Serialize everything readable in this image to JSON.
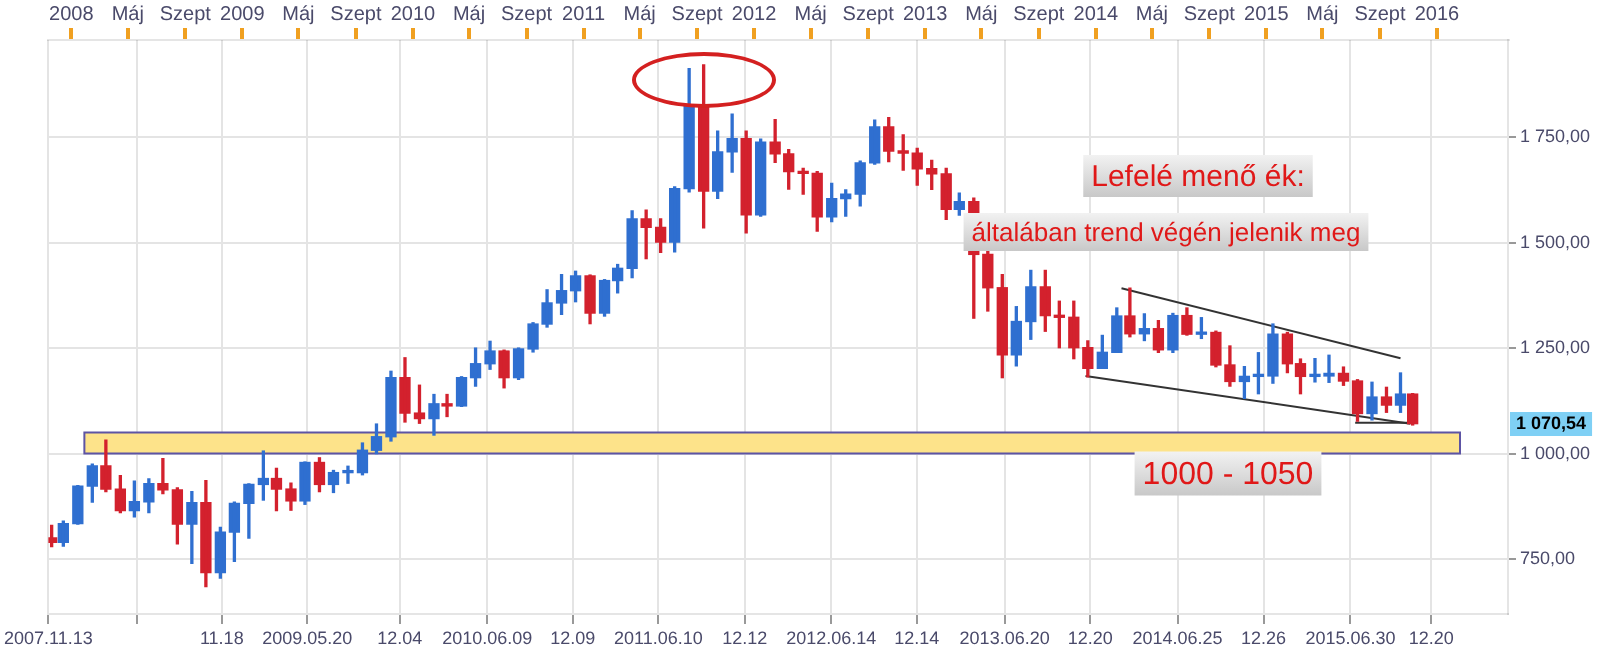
{
  "chart_data": {
    "type": "candlestick",
    "x": [
      "2007-11-20",
      "2007-12-15",
      "2008-01-15",
      "2008-02-15",
      "2008-03-15",
      "2008-04-15",
      "2008-05-15",
      "2008-06-15",
      "2008-07-15",
      "2008-08-15",
      "2008-09-15",
      "2008-10-15",
      "2008-11-15",
      "2008-12-15",
      "2009-01-15",
      "2009-02-15",
      "2009-03-15",
      "2009-04-15",
      "2009-05-15",
      "2009-06-15",
      "2009-07-15",
      "2009-08-15",
      "2009-09-15",
      "2009-10-15",
      "2009-11-15",
      "2009-12-15",
      "2010-01-15",
      "2010-02-15",
      "2010-03-15",
      "2010-04-15",
      "2010-05-15",
      "2010-06-15",
      "2010-07-15",
      "2010-08-15",
      "2010-09-15",
      "2010-10-15",
      "2010-11-15",
      "2010-12-15",
      "2011-01-15",
      "2011-02-15",
      "2011-03-15",
      "2011-04-15",
      "2011-05-15",
      "2011-06-15",
      "2011-07-15",
      "2011-08-15",
      "2011-09-15",
      "2011-10-15",
      "2011-11-15",
      "2011-12-15",
      "2012-01-15",
      "2012-02-15",
      "2012-03-15",
      "2012-04-15",
      "2012-05-15",
      "2012-06-15",
      "2012-07-15",
      "2012-08-15",
      "2012-09-15",
      "2012-10-15",
      "2012-11-15",
      "2012-12-15",
      "2013-01-15",
      "2013-02-15",
      "2013-03-15",
      "2013-04-15",
      "2013-05-15",
      "2013-06-15",
      "2013-07-15",
      "2013-08-15",
      "2013-09-15",
      "2013-10-15",
      "2013-11-15",
      "2013-12-15",
      "2014-01-15",
      "2014-02-15",
      "2014-03-15",
      "2014-04-15",
      "2014-05-15",
      "2014-06-15",
      "2014-07-15",
      "2014-08-15",
      "2014-09-15",
      "2014-10-15",
      "2014-11-15",
      "2014-12-15",
      "2015-01-15",
      "2015-02-15",
      "2015-03-15",
      "2015-04-15",
      "2015-05-15",
      "2015-06-15",
      "2015-07-15",
      "2015-08-15",
      "2015-09-15",
      "2015-10-15",
      "2015-11-10"
    ],
    "ohlc": [
      [
        800,
        830,
        780,
        790
      ],
      [
        790,
        840,
        781,
        834
      ],
      [
        834,
        924,
        833,
        923
      ],
      [
        923,
        975,
        885,
        971
      ],
      [
        971,
        1032,
        910,
        916
      ],
      [
        916,
        948,
        860,
        865
      ],
      [
        865,
        935,
        850,
        886
      ],
      [
        886,
        940,
        860,
        929
      ],
      [
        929,
        988,
        905,
        914
      ],
      [
        914,
        919,
        786,
        833
      ],
      [
        833,
        910,
        740,
        884
      ],
      [
        884,
        936,
        685,
        718
      ],
      [
        718,
        825,
        705,
        814
      ],
      [
        814,
        885,
        745,
        882
      ],
      [
        882,
        928,
        800,
        927
      ],
      [
        927,
        1006,
        890,
        941
      ],
      [
        941,
        965,
        865,
        916
      ],
      [
        916,
        930,
        866,
        888
      ],
      [
        888,
        980,
        880,
        979
      ],
      [
        979,
        990,
        910,
        927
      ],
      [
        927,
        960,
        908,
        955
      ],
      [
        955,
        970,
        930,
        955
      ],
      [
        955,
        1025,
        950,
        1008
      ],
      [
        1008,
        1070,
        1000,
        1040
      ],
      [
        1040,
        1195,
        1030,
        1180
      ],
      [
        1180,
        1227,
        1075,
        1096
      ],
      [
        1096,
        1162,
        1072,
        1083
      ],
      [
        1083,
        1140,
        1044,
        1118
      ],
      [
        1118,
        1140,
        1088,
        1113
      ],
      [
        1113,
        1182,
        1112,
        1180
      ],
      [
        1180,
        1250,
        1160,
        1213
      ],
      [
        1213,
        1266,
        1200,
        1243
      ],
      [
        1243,
        1245,
        1156,
        1180
      ],
      [
        1180,
        1250,
        1176,
        1248
      ],
      [
        1248,
        1310,
        1241,
        1307
      ],
      [
        1307,
        1388,
        1300,
        1357
      ],
      [
        1357,
        1424,
        1330,
        1386
      ],
      [
        1386,
        1432,
        1360,
        1421
      ],
      [
        1421,
        1423,
        1308,
        1333
      ],
      [
        1333,
        1412,
        1326,
        1410
      ],
      [
        1410,
        1448,
        1381,
        1439
      ],
      [
        1439,
        1575,
        1417,
        1556
      ],
      [
        1556,
        1577,
        1462,
        1536
      ],
      [
        1536,
        1556,
        1477,
        1501
      ],
      [
        1501,
        1632,
        1478,
        1628
      ],
      [
        1628,
        1912,
        1620,
        1826
      ],
      [
        1826,
        1921,
        1535,
        1622
      ],
      [
        1622,
        1764,
        1605,
        1715
      ],
      [
        1715,
        1804,
        1667,
        1746
      ],
      [
        1746,
        1764,
        1523,
        1566
      ],
      [
        1566,
        1745,
        1563,
        1738
      ],
      [
        1738,
        1791,
        1690,
        1710
      ],
      [
        1710,
        1720,
        1627,
        1668
      ],
      [
        1668,
        1676,
        1615,
        1664
      ],
      [
        1664,
        1668,
        1527,
        1561
      ],
      [
        1561,
        1640,
        1550,
        1604
      ],
      [
        1604,
        1625,
        1563,
        1615
      ],
      [
        1615,
        1693,
        1587,
        1689
      ],
      [
        1689,
        1790,
        1686,
        1774
      ],
      [
        1774,
        1796,
        1692,
        1717
      ],
      [
        1717,
        1755,
        1672,
        1712
      ],
      [
        1712,
        1723,
        1636,
        1675
      ],
      [
        1675,
        1695,
        1626,
        1663
      ],
      [
        1663,
        1676,
        1555,
        1579
      ],
      [
        1579,
        1617,
        1565,
        1597
      ],
      [
        1597,
        1605,
        1321,
        1472
      ],
      [
        1472,
        1487,
        1338,
        1393
      ],
      [
        1393,
        1424,
        1180,
        1234
      ],
      [
        1234,
        1348,
        1208,
        1313
      ],
      [
        1313,
        1434,
        1271,
        1395
      ],
      [
        1395,
        1434,
        1290,
        1327
      ],
      [
        1327,
        1361,
        1251,
        1323
      ],
      [
        1323,
        1361,
        1225,
        1251
      ],
      [
        1251,
        1267,
        1182,
        1202
      ],
      [
        1202,
        1280,
        1202,
        1240
      ],
      [
        1240,
        1345,
        1240,
        1326
      ],
      [
        1326,
        1392,
        1277,
        1284
      ],
      [
        1284,
        1331,
        1268,
        1296
      ],
      [
        1296,
        1315,
        1240,
        1246
      ],
      [
        1246,
        1332,
        1240,
        1327
      ],
      [
        1327,
        1345,
        1281,
        1283
      ],
      [
        1283,
        1322,
        1273,
        1287
      ],
      [
        1287,
        1290,
        1206,
        1210
      ],
      [
        1210,
        1255,
        1160,
        1171
      ],
      [
        1171,
        1206,
        1131,
        1183
      ],
      [
        1183,
        1239,
        1142,
        1184
      ],
      [
        1184,
        1307,
        1167,
        1283
      ],
      [
        1283,
        1287,
        1192,
        1213
      ],
      [
        1213,
        1224,
        1142,
        1183
      ],
      [
        1183,
        1225,
        1170,
        1184
      ],
      [
        1184,
        1233,
        1169,
        1190
      ],
      [
        1190,
        1205,
        1162,
        1172
      ],
      [
        1172,
        1175,
        1077,
        1095
      ],
      [
        1095,
        1169,
        1080,
        1134
      ],
      [
        1134,
        1157,
        1098,
        1115
      ],
      [
        1115,
        1191,
        1098,
        1141
      ],
      [
        1141,
        1142,
        1068,
        1071
      ]
    ],
    "series": [
      {
        "type": "line",
        "color": "#333333",
        "x": [
          "2014-02-25",
          "2015-10-15"
        ],
        "values": [
          1392,
          1226
        ]
      },
      {
        "type": "line",
        "color": "#333333",
        "x": [
          "2013-12-10",
          "2015-11-05"
        ],
        "values": [
          1184,
          1071
        ]
      },
      {
        "type": "line",
        "color": "#333333",
        "x": [
          "2015-07-10",
          "2015-11-10"
        ],
        "values": [
          1073,
          1073
        ]
      }
    ],
    "xlim": [
      "2007-11-13",
      "2016-06-01"
    ],
    "xticks": [
      {
        "value": "2007-11-13",
        "label": "2007.11.13"
      },
      {
        "value": "2008-05-20",
        "label": null
      },
      {
        "value": "2008-11-18",
        "label": "11.18"
      },
      {
        "value": "2009-05-20",
        "label": "2009.05.20"
      },
      {
        "value": "2009-12-04",
        "label": "12.04"
      },
      {
        "value": "2010-06-09",
        "label": "2010.06.09"
      },
      {
        "value": "2010-12-09",
        "label": "12.09"
      },
      {
        "value": "2011-06-10",
        "label": "2011.06.10"
      },
      {
        "value": "2011-12-12",
        "label": "12.12"
      },
      {
        "value": "2012-06-14",
        "label": "2012.06.14"
      },
      {
        "value": "2012-12-14",
        "label": "12.14"
      },
      {
        "value": "2013-06-20",
        "label": "2013.06.20"
      },
      {
        "value": "2013-12-20",
        "label": "12.20"
      },
      {
        "value": "2014-06-25",
        "label": "2014.06.25"
      },
      {
        "value": "2014-12-26",
        "label": "12.26"
      },
      {
        "value": "2015-06-30",
        "label": "2015.06.30"
      },
      {
        "value": "2015-12-20",
        "label": "12.20"
      }
    ],
    "x2lim": [
      "2007-11-13",
      "2016-06-01"
    ],
    "x2ticks": [
      {
        "value": "2008-01-01",
        "label": "2008"
      },
      {
        "value": "2008-05-01",
        "label": "Máj"
      },
      {
        "value": "2008-09-01",
        "label": "Szept"
      },
      {
        "value": "2009-01-01",
        "label": "2009"
      },
      {
        "value": "2009-05-01",
        "label": "Máj"
      },
      {
        "value": "2009-09-01",
        "label": "Szept"
      },
      {
        "value": "2010-01-01",
        "label": "2010"
      },
      {
        "value": "2010-05-01",
        "label": "Máj"
      },
      {
        "value": "2010-09-01",
        "label": "Szept"
      },
      {
        "value": "2011-01-01",
        "label": "2011"
      },
      {
        "value": "2011-05-01",
        "label": "Máj"
      },
      {
        "value": "2011-09-01",
        "label": "Szept"
      },
      {
        "value": "2012-01-01",
        "label": "2012"
      },
      {
        "value": "2012-05-01",
        "label": "Máj"
      },
      {
        "value": "2012-09-01",
        "label": "Szept"
      },
      {
        "value": "2013-01-01",
        "label": "2013"
      },
      {
        "value": "2013-05-01",
        "label": "Máj"
      },
      {
        "value": "2013-09-01",
        "label": "Szept"
      },
      {
        "value": "2014-01-01",
        "label": "2014"
      },
      {
        "value": "2014-05-01",
        "label": "Máj"
      },
      {
        "value": "2014-09-01",
        "label": "Szept"
      },
      {
        "value": "2015-01-01",
        "label": "2015"
      },
      {
        "value": "2015-05-01",
        "label": "Máj"
      },
      {
        "value": "2015-09-01",
        "label": "Szept"
      },
      {
        "value": "2016-01-01",
        "label": "2016"
      }
    ],
    "ylim": [
      620,
      1980
    ],
    "yticks": [
      {
        "value": 750,
        "label": "750,00"
      },
      {
        "value": 1000,
        "label": "1 000,00"
      },
      {
        "value": 1250,
        "label": "1 250,00"
      },
      {
        "value": 1500,
        "label": "1 500,00"
      },
      {
        "value": 1750,
        "label": "1 750,00"
      }
    ],
    "bands": [
      {
        "axis": "y",
        "from": 1000,
        "to": 1050,
        "label": "1000 - 1050",
        "color": "#fde38a"
      }
    ],
    "annotations": [
      "Lefelé menő ék:",
      "általában trend végén jelenik meg",
      "1 070,54"
    ],
    "grid": true,
    "legend": false,
    "marker": "none",
    "line_style": "solid"
  }
}
